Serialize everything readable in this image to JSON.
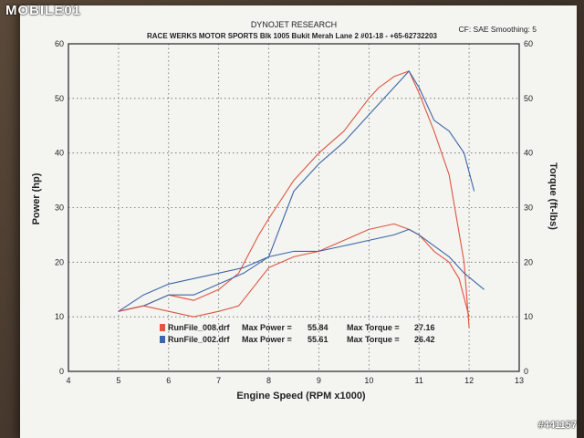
{
  "watermark": "MOBILE01",
  "photo_id": "#441157",
  "header": {
    "company": "DYNOJET RESEARCH",
    "shop": "RACE WERKS MOTOR SPORTS Blk 1005 Bukit Merah Lane 2 #01-18 - +65-62732203",
    "correction": "CF: SAE  Smoothing: 5"
  },
  "chart_data": {
    "type": "line",
    "xlabel": "Engine Speed (RPM x1000)",
    "ylabel_left": "Power (hp)",
    "ylabel_right": "Torque (ft-lbs)",
    "xlim": [
      4,
      13
    ],
    "ylim_left": [
      0,
      60
    ],
    "ylim_right": [
      0,
      60
    ],
    "xticks": [
      4,
      5,
      6,
      7,
      8,
      9,
      10,
      11,
      12,
      13
    ],
    "yticks": [
      0,
      10,
      20,
      30,
      40,
      50,
      60
    ],
    "grid": true,
    "colors": {
      "run008": "#e0553f",
      "run002": "#3d66a6"
    },
    "series": [
      {
        "name": "RunFile_008.drf",
        "measure": "Power",
        "axis": "left",
        "color": "#e0553f",
        "x": [
          5.0,
          5.5,
          6.0,
          6.5,
          7.0,
          7.4,
          7.8,
          8.0,
          8.5,
          9.0,
          9.5,
          10.0,
          10.2,
          10.5,
          10.8,
          11.0,
          11.3,
          11.6,
          11.9,
          12.0
        ],
        "y": [
          11,
          12,
          14,
          13,
          15,
          18,
          25,
          28,
          35,
          40,
          44,
          50,
          52,
          54,
          55,
          51,
          44,
          36,
          20,
          8
        ]
      },
      {
        "name": "RunFile_002.drf",
        "measure": "Power",
        "axis": "left",
        "color": "#3d66a6",
        "x": [
          5.0,
          5.5,
          6.0,
          6.5,
          7.0,
          7.5,
          8.0,
          8.5,
          9.0,
          9.5,
          10.0,
          10.3,
          10.6,
          10.8,
          11.0,
          11.3,
          11.6,
          11.9,
          12.1
        ],
        "y": [
          11,
          12,
          14,
          14,
          16,
          18,
          21,
          33,
          38,
          42,
          47,
          50,
          53,
          55,
          52,
          46,
          44,
          40,
          33
        ]
      },
      {
        "name": "RunFile_008.drf",
        "measure": "Torque",
        "axis": "right",
        "color": "#e0553f",
        "x": [
          5.0,
          5.5,
          6.0,
          6.5,
          7.0,
          7.4,
          8.0,
          8.5,
          9.0,
          9.5,
          10.0,
          10.5,
          10.8,
          11.0,
          11.3,
          11.6,
          11.8,
          12.0
        ],
        "y": [
          11,
          12,
          11,
          10,
          11,
          12,
          19,
          21,
          22,
          24,
          26,
          27,
          26,
          25,
          22,
          20,
          17,
          10
        ]
      },
      {
        "name": "RunFile_002.drf",
        "measure": "Torque",
        "axis": "right",
        "color": "#3d66a6",
        "x": [
          5.0,
          5.5,
          6.0,
          6.5,
          7.0,
          7.5,
          8.0,
          8.5,
          9.0,
          9.5,
          10.0,
          10.5,
          10.8,
          11.0,
          11.3,
          11.6,
          11.9,
          12.3
        ],
        "y": [
          11,
          14,
          16,
          17,
          18,
          19,
          21,
          22,
          22,
          23,
          24,
          25,
          26,
          25,
          23,
          21,
          18,
          15
        ]
      }
    ],
    "legend": [
      {
        "file": "RunFile_008.drf",
        "max_power_label": "Max Power =",
        "max_power": "55.84",
        "max_torque_label": "Max Torque =",
        "max_torque": "27.16",
        "color": "#e0553f"
      },
      {
        "file": "RunFile_002.drf",
        "max_power_label": "Max Power =",
        "max_power": "55.61",
        "max_torque_label": "Max Torque =",
        "max_torque": "26.42",
        "color": "#3d66a6"
      }
    ],
    "legend_position": "bottom-center"
  }
}
